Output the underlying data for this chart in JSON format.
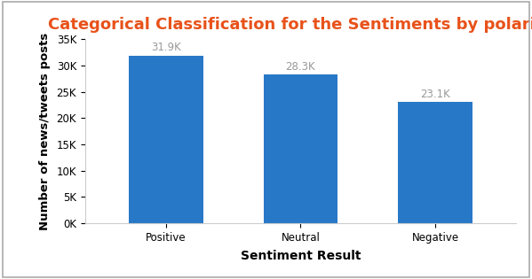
{
  "title": "Categorical Classification for the Sentiments by polarity",
  "title_color": "#e8521a",
  "xlabel": "Sentiment Result",
  "ylabel": "Number of news/tweets posts",
  "categories": [
    "Positive",
    "Neutral",
    "Negative"
  ],
  "values": [
    31900,
    28300,
    23100
  ],
  "bar_labels": [
    "31.9K",
    "28.3K",
    "23.1K"
  ],
  "bar_color": "#2878c8",
  "ylim": [
    0,
    35000
  ],
  "yticks": [
    0,
    5000,
    10000,
    15000,
    20000,
    25000,
    30000,
    35000
  ],
  "ytick_labels": [
    "0K",
    "5K",
    "10K",
    "15K",
    "20K",
    "25K",
    "30K",
    "35K"
  ],
  "background_color": "#ffffff",
  "border_color": "#aaaaaa",
  "label_color": "#999999",
  "title_fontsize": 13,
  "axis_label_fontsize": 10,
  "tick_fontsize": 8.5,
  "bar_label_fontsize": 8.5,
  "bar_width": 0.55
}
